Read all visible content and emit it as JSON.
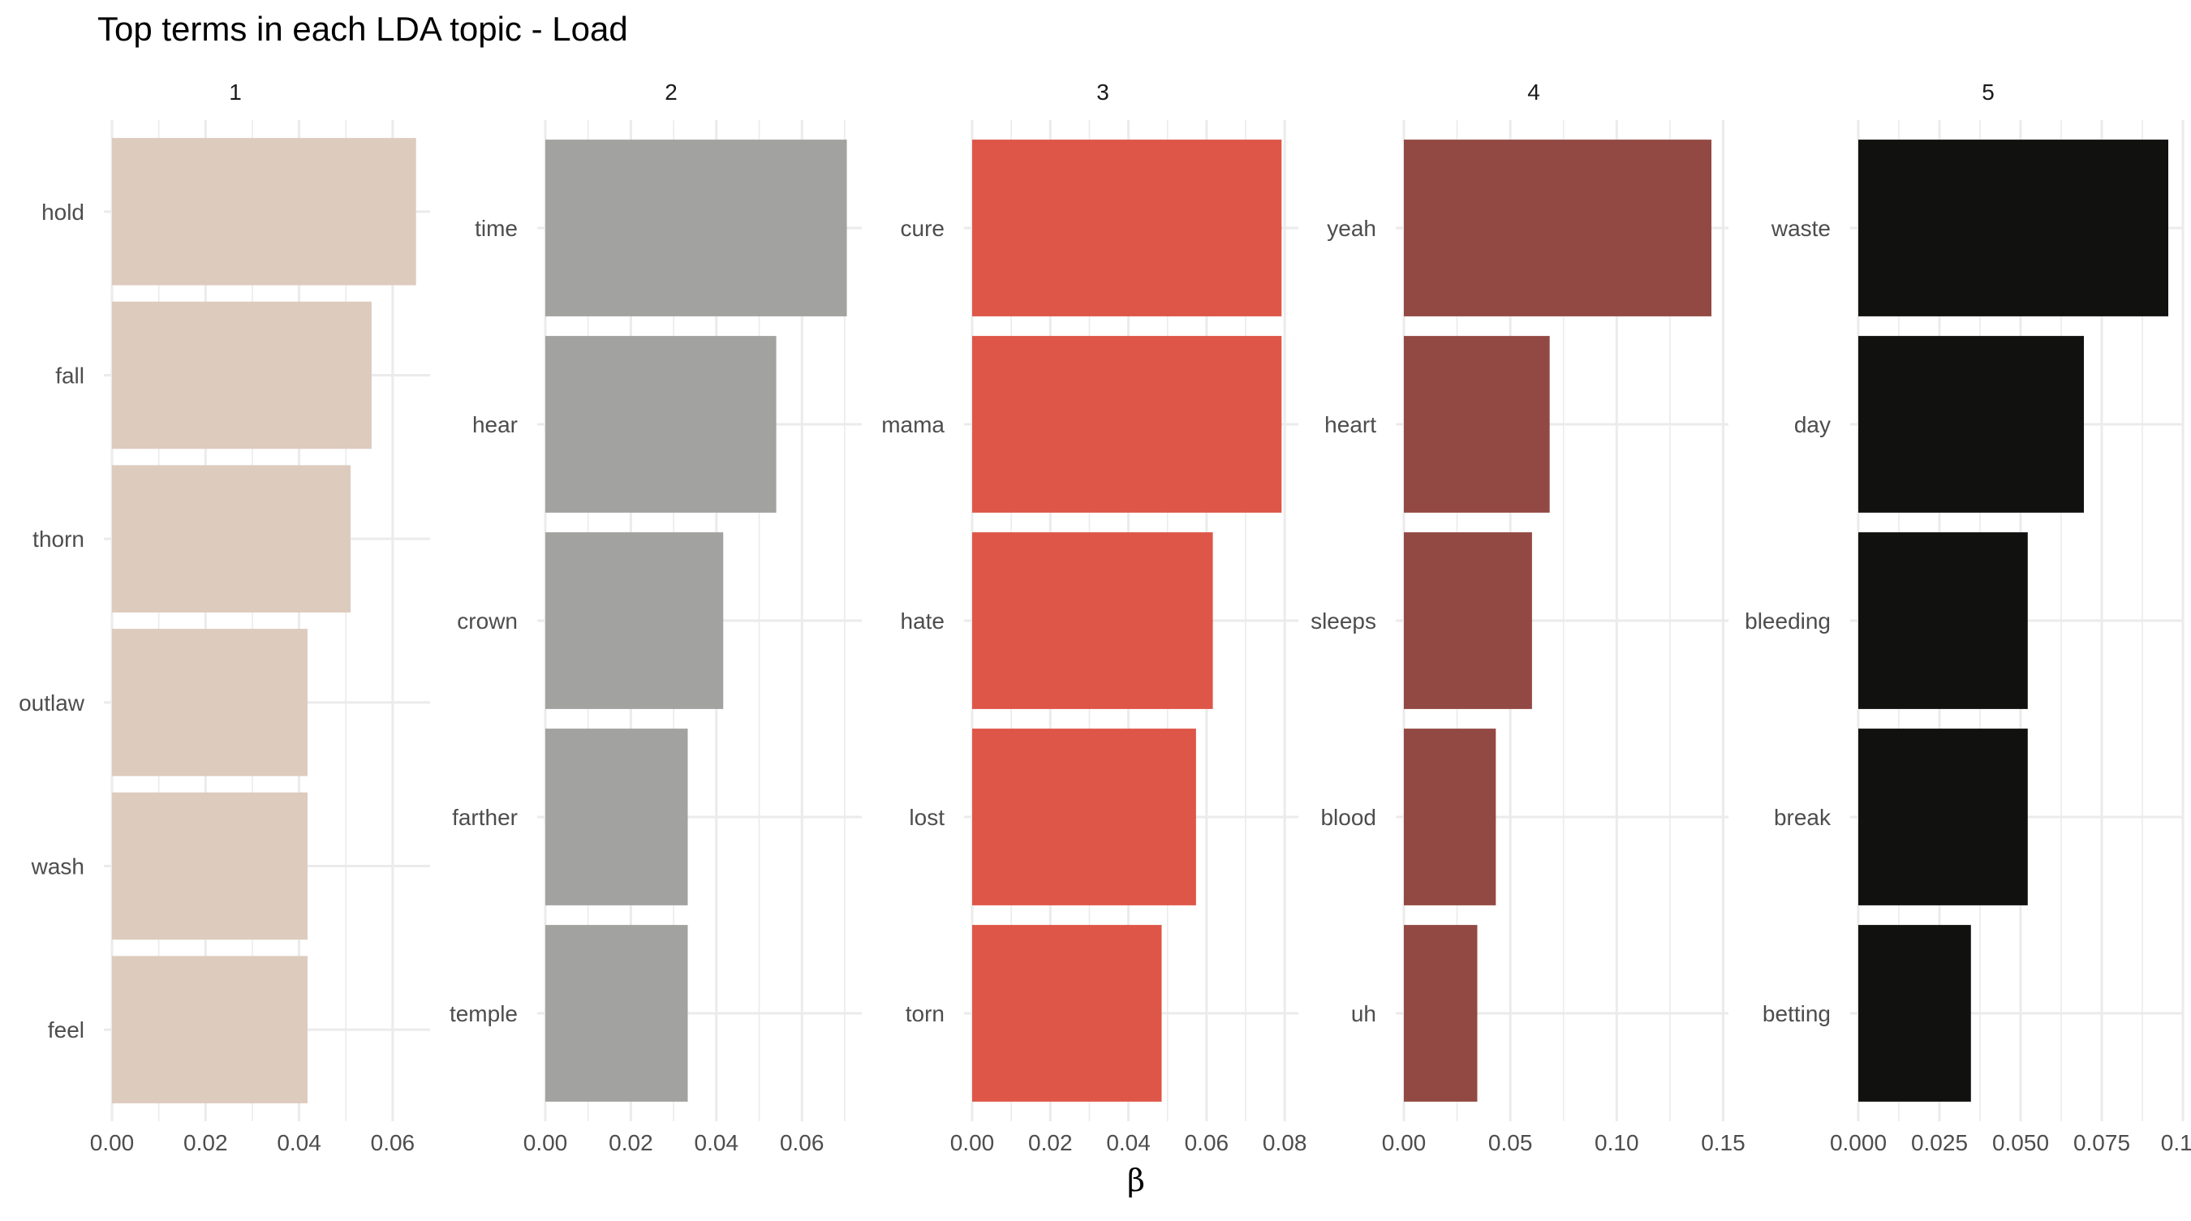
{
  "chart_data": {
    "type": "bar",
    "orientation": "horizontal",
    "title": "Top terms in each LDA topic - Load",
    "xlabel": "β",
    "grid": true,
    "panels": [
      {
        "name": "1",
        "color": "#DDCBBE",
        "categories": [
          "hold",
          "fall",
          "thorn",
          "outlaw",
          "wash",
          "feel"
        ],
        "values": [
          0.065,
          0.0555,
          0.051,
          0.0418,
          0.0418,
          0.0418
        ],
        "xlim": [
          0,
          0.068
        ],
        "ticks": [
          0,
          0.02,
          0.04,
          0.06
        ],
        "tick_labels": [
          "0.00",
          "0.02",
          "0.04",
          "0.06"
        ]
      },
      {
        "name": "2",
        "color": "#A2A2A0",
        "categories": [
          "time",
          "hear",
          "crown",
          "farther",
          "temple"
        ],
        "values": [
          0.0705,
          0.054,
          0.0416,
          0.0333,
          0.0333
        ],
        "xlim": [
          0,
          0.074
        ],
        "ticks": [
          0,
          0.02,
          0.04,
          0.06
        ],
        "tick_labels": [
          "0.00",
          "0.02",
          "0.04",
          "0.06"
        ]
      },
      {
        "name": "3",
        "color": "#DE5647",
        "categories": [
          "cure",
          "mama",
          "hate",
          "lost",
          "torn"
        ],
        "values": [
          0.0792,
          0.0792,
          0.0616,
          0.0573,
          0.0485
        ],
        "xlim": [
          0,
          0.0835
        ],
        "ticks": [
          0,
          0.02,
          0.04,
          0.06,
          0.08
        ],
        "tick_labels": [
          "0.00",
          "0.02",
          "0.04",
          "0.06",
          "0.08"
        ]
      },
      {
        "name": "4",
        "color": "#934943",
        "categories": [
          "yeah",
          "heart",
          "sleeps",
          "blood",
          "uh"
        ],
        "values": [
          0.1445,
          0.0685,
          0.0602,
          0.0432,
          0.0345
        ],
        "xlim": [
          0,
          0.1525
        ],
        "ticks": [
          0,
          0.05,
          0.1,
          0.15
        ],
        "tick_labels": [
          "0.00",
          "0.05",
          "0.10",
          "0.15"
        ]
      },
      {
        "name": "5",
        "color": "#111110",
        "categories": [
          "waste",
          "day",
          "bleeding",
          "break",
          "betting"
        ],
        "values": [
          0.0955,
          0.0695,
          0.0522,
          0.0522,
          0.0347
        ],
        "xlim": [
          0,
          0.1
        ],
        "ticks": [
          0,
          0.025,
          0.05,
          0.075,
          0.1
        ],
        "tick_labels": [
          "0.000",
          "0.025",
          "0.050",
          "0.075",
          "0.10"
        ]
      }
    ]
  }
}
